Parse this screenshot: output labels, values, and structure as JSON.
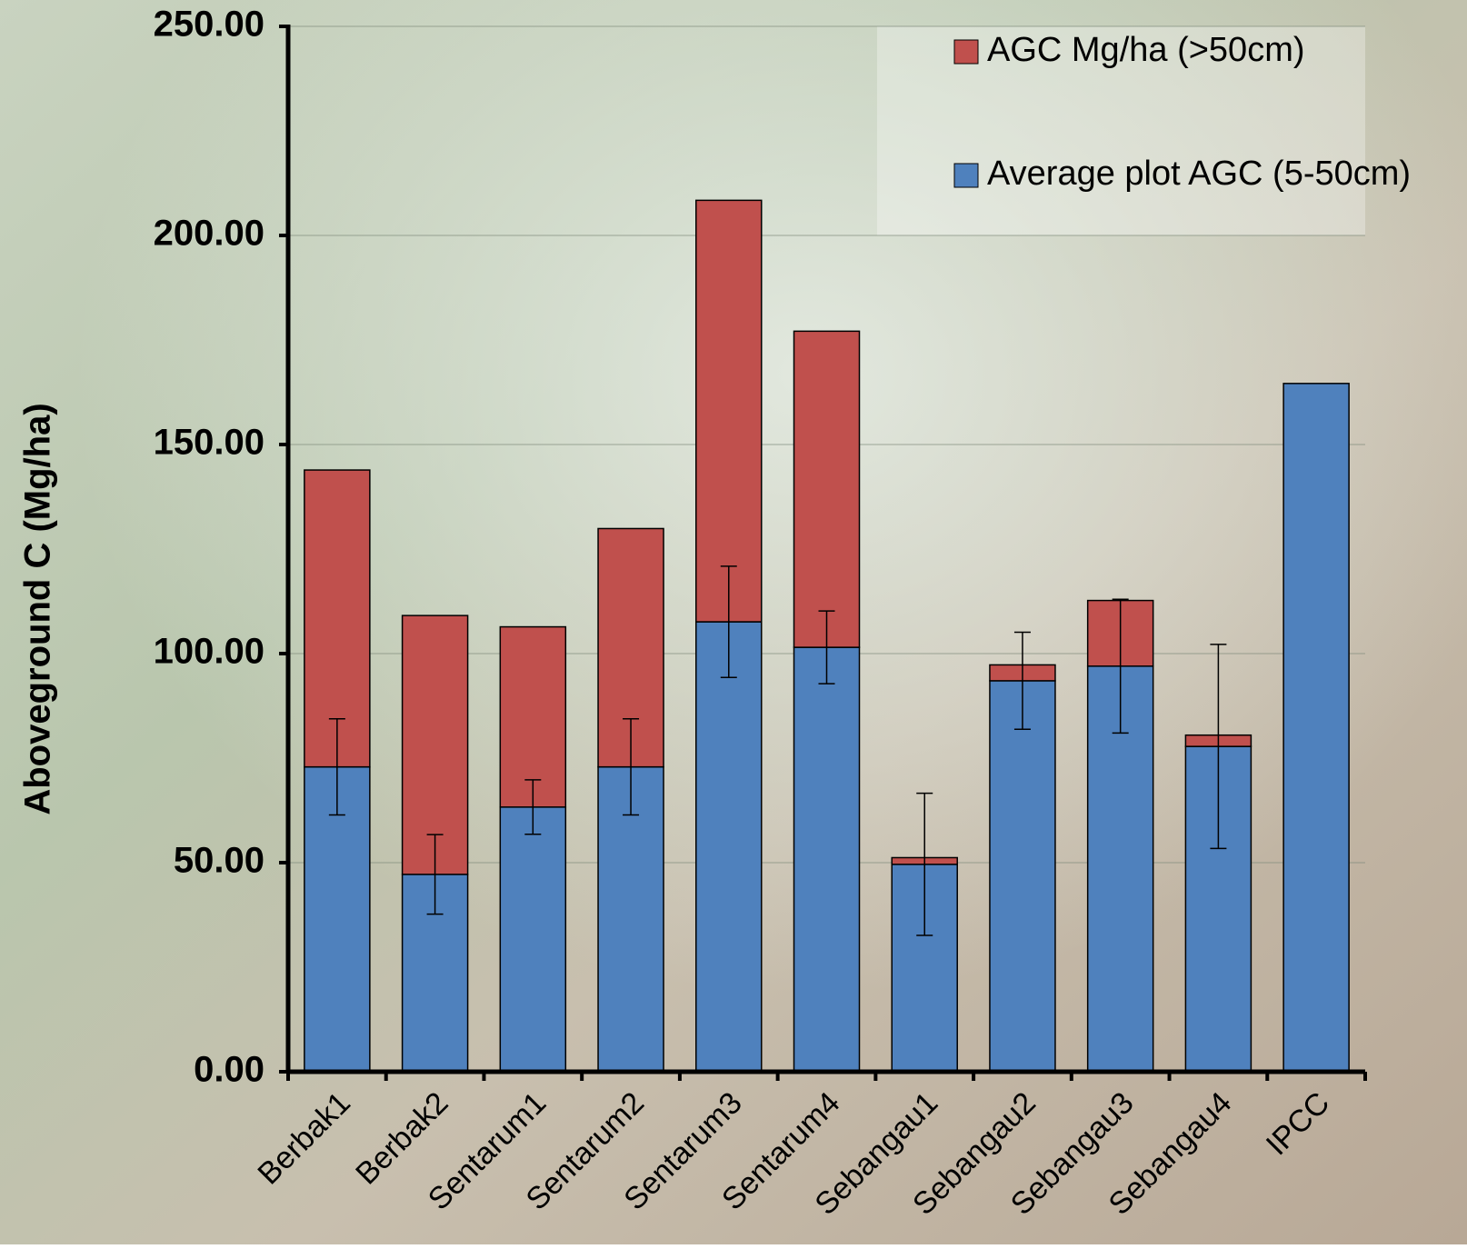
{
  "chart_data": {
    "type": "stacked_bar",
    "y_label": "Aboveground C (Mg/ha)",
    "categories": [
      "Berbak1",
      "Berbak2",
      "Sentarum1",
      "Sentarum2",
      "Sentarum3",
      "Sentarum4",
      "Sebangau1",
      "Sebangau2",
      "Sebangau3",
      "Sebangau4",
      "IPCC"
    ],
    "series": [
      {
        "name": "AGC Mg/ha (>50cm)",
        "color": "#c0504d",
        "values": [
          71,
          61.9,
          43.1,
          57,
          100.8,
          75.6,
          1.6,
          3.8,
          15.7,
          2.7,
          null
        ]
      },
      {
        "name": "Average plot AGC (5-50cm)",
        "color": "#4f81bd",
        "values": [
          72.9,
          47.2,
          63.3,
          72.9,
          107.6,
          101.5,
          49.6,
          93.5,
          97.0,
          77.8,
          164.6
        ],
        "errors": [
          11.5,
          9.5,
          6.5,
          11.5,
          13.3,
          8.7,
          17,
          11.6,
          16,
          24.4,
          null
        ]
      }
    ],
    "ylim": [
      0,
      250
    ],
    "yticks": [
      {
        "value": 0,
        "label": "0.00"
      },
      {
        "value": 50,
        "label": "50.00"
      },
      {
        "value": 100,
        "label": "100.00"
      },
      {
        "value": 150,
        "label": "150.00"
      },
      {
        "value": 200,
        "label": "200.00"
      },
      {
        "value": 250,
        "label": "250.00"
      }
    ],
    "grid": true,
    "legend": "top-right"
  }
}
